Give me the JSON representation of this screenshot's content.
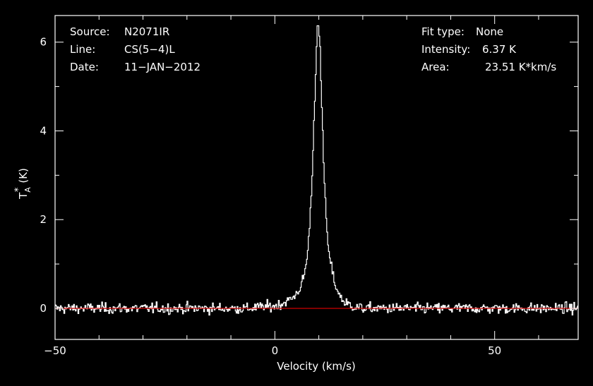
{
  "chart_data": {
    "type": "line",
    "xlabel": "Velocity (km/s)",
    "ylabel": "T",
    "ylabel_sub": "A",
    "ylabel_sup": "*",
    "ylabel_unit": "(K)",
    "xlim": [
      -50,
      69
    ],
    "ylim": [
      -0.7,
      6.6
    ],
    "xticks": [
      -50,
      0,
      50
    ],
    "xtick_labels": [
      "−50",
      "0",
      "50"
    ],
    "yticks": [
      0,
      2,
      4,
      6
    ],
    "ytick_labels": [
      "0",
      "2",
      "4",
      "6"
    ],
    "grid": false,
    "colors": {
      "background": "#000000",
      "spectrum": "#ffffff",
      "baseline": "#cc0000",
      "axes": "#ffffff"
    },
    "baseline_value": 0,
    "line": {
      "center": 9.9,
      "peak": 6.37,
      "profile_points": [
        [
          -5,
          0.02
        ],
        [
          0,
          0.05
        ],
        [
          2,
          0.12
        ],
        [
          3,
          0.18
        ],
        [
          4,
          0.22
        ],
        [
          5,
          0.35
        ],
        [
          6,
          0.5
        ],
        [
          7,
          0.9
        ],
        [
          7.5,
          1.3
        ],
        [
          8,
          2.0
        ],
        [
          8.5,
          3.0
        ],
        [
          9,
          4.5
        ],
        [
          9.5,
          5.9
        ],
        [
          9.9,
          6.37
        ],
        [
          10.3,
          5.9
        ],
        [
          10.7,
          4.5
        ],
        [
          11.2,
          3.0
        ],
        [
          11.7,
          2.0
        ],
        [
          12.2,
          1.3
        ],
        [
          13,
          0.85
        ],
        [
          14,
          0.45
        ],
        [
          15,
          0.25
        ],
        [
          16,
          0.12
        ],
        [
          18,
          0.04
        ],
        [
          20,
          0.0
        ]
      ],
      "noise_rms": 0.1
    },
    "annotations": {
      "left": [
        {
          "label": "Source:",
          "value": "N2071IR"
        },
        {
          "label": "Line:",
          "value": "CS(5−4)L"
        },
        {
          "label": "Date:",
          "value": "11−JAN−2012"
        }
      ],
      "right": [
        {
          "label": "Fit type:",
          "value": "None"
        },
        {
          "label": "Intensity:",
          "value": "6.37 K"
        },
        {
          "label": "Area:",
          "value": "23.51 K*km/s"
        }
      ]
    }
  }
}
